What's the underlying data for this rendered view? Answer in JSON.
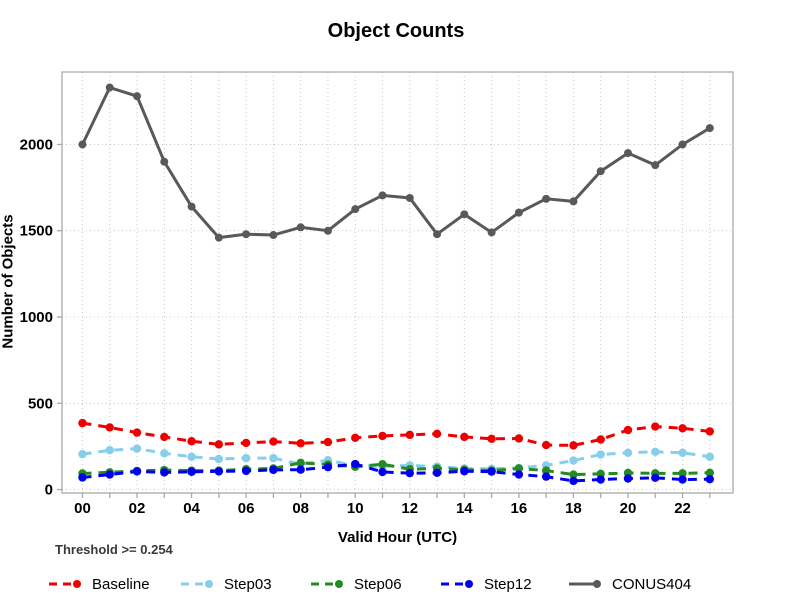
{
  "title": "Object Counts",
  "threshold_note": "Threshold >= 0.254",
  "axes": {
    "x_title": "Valid Hour (UTC)",
    "y_title": "Number of Objects"
  },
  "chart_data": {
    "type": "line",
    "title": "Object Counts",
    "xlabel": "Valid Hour (UTC)",
    "ylabel": "Number of Objects",
    "x_hours": [
      "00",
      "01",
      "02",
      "03",
      "04",
      "05",
      "06",
      "07",
      "08",
      "09",
      "10",
      "11",
      "12",
      "13",
      "14",
      "15",
      "16",
      "17",
      "18",
      "19",
      "20",
      "21",
      "22",
      "23"
    ],
    "x_tick_labels_shown": [
      "00",
      "02",
      "04",
      "06",
      "08",
      "10",
      "12",
      "14",
      "16",
      "18",
      "20",
      "22"
    ],
    "y_ticks": [
      0,
      500,
      1000,
      1500,
      2000
    ],
    "ylim": [
      -20,
      2420
    ],
    "xlim": [
      -0.75,
      23.85
    ],
    "grid": "dotted light-gray vertical line each hour, horizontal line each 500",
    "legend_position": "bottom",
    "annotation": "Threshold >= 0.254",
    "series": [
      {
        "name": "Baseline",
        "color": "#ee0000",
        "style": "dashed",
        "marker": "circle",
        "values": [
          385,
          360,
          330,
          305,
          280,
          262,
          270,
          278,
          268,
          275,
          300,
          311,
          317,
          323,
          305,
          294,
          296,
          258,
          256,
          290,
          345,
          365,
          355,
          337
        ]
      },
      {
        "name": "Step03",
        "color": "#87ceeb",
        "style": "dashed",
        "marker": "circle",
        "values": [
          205,
          228,
          237,
          210,
          190,
          177,
          182,
          182,
          147,
          170,
          138,
          134,
          140,
          133,
          122,
          120,
          125,
          140,
          168,
          203,
          213,
          219,
          213,
          190
        ]
      },
      {
        "name": "Step06",
        "color": "#228b22",
        "style": "dashed",
        "marker": "circle",
        "values": [
          93,
          100,
          108,
          113,
          110,
          110,
          118,
          122,
          155,
          145,
          132,
          147,
          118,
          122,
          115,
          110,
          122,
          110,
          87,
          91,
          96,
          94,
          94,
          97
        ]
      },
      {
        "name": "Step12",
        "color": "#0000ee",
        "style": "dashed",
        "marker": "circle",
        "values": [
          70,
          87,
          105,
          99,
          103,
          105,
          108,
          114,
          115,
          130,
          148,
          102,
          95,
          97,
          106,
          104,
          87,
          75,
          50,
          58,
          64,
          68,
          58,
          60
        ]
      },
      {
        "name": "CONUS404",
        "color": "#595959",
        "style": "solid",
        "marker": "circle",
        "values": [
          2000,
          2330,
          2280,
          1900,
          1640,
          1460,
          1480,
          1475,
          1520,
          1500,
          1625,
          1705,
          1690,
          1480,
          1595,
          1490,
          1605,
          1685,
          1670,
          1845,
          1950,
          1880,
          2000,
          2095
        ]
      }
    ],
    "colors": {
      "plot_border": "#aaaaaa",
      "grid": "#c8c8c8",
      "tick_text": "#000000",
      "background": "#ffffff"
    }
  }
}
